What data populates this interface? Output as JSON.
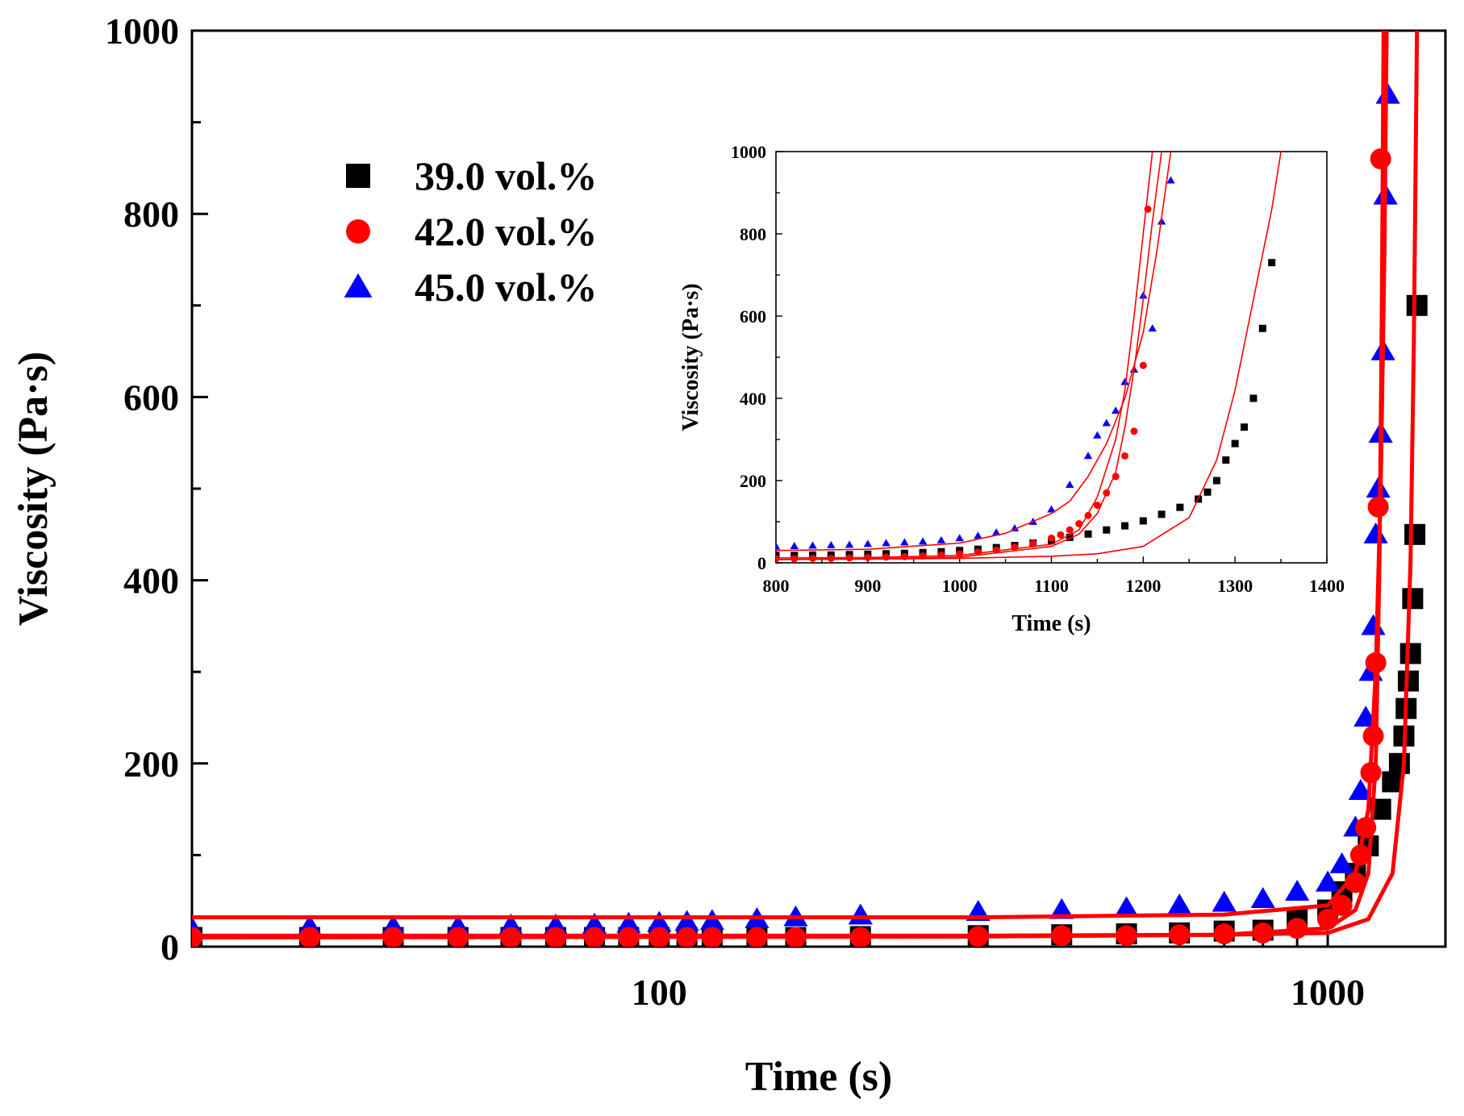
{
  "chart_data": [
    {
      "type": "scatter",
      "xlabel": "Time (s)",
      "ylabel": "Viscosity (Pa·s)",
      "xscale": "log",
      "xlim": [
        20,
        1500
      ],
      "ylim": [
        0,
        1000
      ],
      "xticks": [
        100,
        1000
      ],
      "xtick_labels": [
        "100",
        "1000"
      ],
      "yticks": [
        0,
        200,
        400,
        600,
        800,
        1000
      ],
      "ytick_labels": [
        "0",
        "200",
        "400",
        "600",
        "800",
        "1000"
      ],
      "grid": false,
      "legend_position": "top-left",
      "colors": {
        "series1": "#000000",
        "series2": "#ff0000",
        "series3": "#0000ff",
        "fit": "#ff0000"
      },
      "series": [
        {
          "name": "39.0 vol.%",
          "marker": "square",
          "x": [
            20,
            30,
            40,
            50,
            60,
            70,
            80,
            90,
            100,
            110,
            120,
            140,
            160,
            200,
            300,
            400,
            500,
            600,
            700,
            800,
            900,
            1000,
            1050,
            1100,
            1150,
            1200,
            1250,
            1280,
            1300,
            1310,
            1320,
            1330,
            1340,
            1350,
            1360
          ],
          "y": [
            10,
            10,
            10,
            10,
            10,
            10,
            10,
            10,
            10,
            10,
            10,
            10,
            10,
            11,
            12,
            13,
            14,
            15,
            17,
            18,
            30,
            40,
            60,
            80,
            110,
            150,
            180,
            200,
            230,
            260,
            290,
            320,
            380,
            450,
            700
          ]
        },
        {
          "name": "42.0 vol.%",
          "marker": "circle",
          "x": [
            20,
            30,
            40,
            50,
            60,
            70,
            80,
            90,
            100,
            110,
            120,
            140,
            160,
            200,
            300,
            400,
            500,
            600,
            700,
            800,
            900,
            1000,
            1050,
            1100,
            1120,
            1140,
            1160,
            1170,
            1180,
            1190,
            1200
          ],
          "y": [
            10,
            10,
            10,
            10,
            10,
            10,
            10,
            10,
            10,
            10,
            10,
            10,
            10,
            10,
            11,
            12,
            12,
            13,
            14,
            15,
            20,
            30,
            45,
            70,
            100,
            130,
            190,
            230,
            310,
            480,
            860
          ]
        },
        {
          "name": "45.0 vol.%",
          "marker": "triangle",
          "x": [
            20,
            30,
            40,
            50,
            60,
            70,
            80,
            90,
            100,
            110,
            120,
            140,
            160,
            200,
            300,
            400,
            500,
            600,
            700,
            800,
            900,
            1000,
            1050,
            1100,
            1120,
            1140,
            1160,
            1170,
            1180,
            1190,
            1200,
            1210,
            1220,
            1230
          ],
          "y": [
            20,
            22,
            22,
            22,
            23,
            23,
            24,
            25,
            26,
            27,
            28,
            30,
            32,
            34,
            38,
            40,
            42,
            45,
            48,
            52,
            60,
            70,
            90,
            130,
            170,
            250,
            300,
            350,
            450,
            500,
            560,
            650,
            820,
            930
          ]
        }
      ],
      "fits": [
        {
          "x": [
            20,
            300,
            700,
            1000,
            1150,
            1250,
            1300,
            1330,
            1345,
            1360
          ],
          "y": [
            12,
            12,
            13,
            15,
            30,
            80,
            200,
            420,
            650,
            1000
          ]
        },
        {
          "x": [
            20,
            300,
            700,
            1000,
            1100,
            1150,
            1180,
            1195,
            1205,
            1212
          ],
          "y": [
            10,
            11,
            13,
            20,
            40,
            80,
            200,
            420,
            700,
            1000
          ]
        },
        {
          "x": [
            20,
            300,
            700,
            1000,
            1100,
            1150,
            1180,
            1200,
            1215,
            1225
          ],
          "y": [
            32,
            32,
            35,
            45,
            80,
            150,
            300,
            500,
            750,
            1000
          ]
        }
      ]
    },
    {
      "type": "scatter",
      "inset": true,
      "xlabel": "Time (s)",
      "ylabel": "Viscosity (Pa·s)",
      "xscale": "linear",
      "xlim": [
        800,
        1400
      ],
      "ylim": [
        0,
        1000
      ],
      "xticks": [
        800,
        900,
        1000,
        1100,
        1200,
        1300,
        1400
      ],
      "xtick_labels": [
        "800",
        "900",
        "1000",
        "1100",
        "1200",
        "1300",
        "1400"
      ],
      "yticks": [
        0,
        200,
        400,
        600,
        800,
        1000
      ],
      "ytick_labels": [
        "0",
        "200",
        "400",
        "600",
        "800",
        "1000"
      ],
      "series": [
        {
          "name": "39.0 vol.%",
          "marker": "square",
          "x": [
            800,
            820,
            840,
            860,
            880,
            900,
            920,
            940,
            960,
            980,
            1000,
            1020,
            1040,
            1060,
            1080,
            1100,
            1120,
            1140,
            1160,
            1180,
            1200,
            1220,
            1240,
            1260,
            1270,
            1280,
            1290,
            1300,
            1310,
            1320,
            1330,
            1340
          ],
          "y": [
            18,
            18,
            19,
            19,
            20,
            21,
            22,
            23,
            25,
            27,
            30,
            33,
            37,
            42,
            48,
            54,
            62,
            70,
            80,
            90,
            102,
            118,
            135,
            155,
            172,
            200,
            250,
            290,
            330,
            400,
            570,
            730
          ]
        },
        {
          "name": "42.0 vol.%",
          "marker": "circle",
          "x": [
            800,
            820,
            840,
            860,
            880,
            900,
            920,
            940,
            960,
            980,
            1000,
            1020,
            1040,
            1060,
            1080,
            1100,
            1110,
            1120,
            1130,
            1140,
            1150,
            1160,
            1170,
            1180,
            1190,
            1200,
            1205
          ],
          "y": [
            10,
            10,
            11,
            11,
            12,
            13,
            14,
            15,
            17,
            19,
            22,
            26,
            31,
            38,
            47,
            60,
            68,
            80,
            95,
            115,
            140,
            170,
            210,
            260,
            320,
            480,
            860
          ]
        },
        {
          "name": "45.0 vol.%",
          "marker": "triangle",
          "x": [
            800,
            820,
            840,
            860,
            880,
            900,
            920,
            940,
            960,
            980,
            1000,
            1020,
            1040,
            1060,
            1080,
            1100,
            1120,
            1140,
            1150,
            1160,
            1170,
            1180,
            1190,
            1200,
            1210,
            1220,
            1230
          ],
          "y": [
            40,
            41,
            42,
            43,
            44,
            46,
            48,
            50,
            52,
            55,
            60,
            66,
            74,
            84,
            100,
            130,
            190,
            260,
            310,
            340,
            370,
            440,
            470,
            650,
            570,
            830,
            930
          ]
        }
      ],
      "fits": [
        {
          "x": [
            800,
            900,
            1000,
            1100,
            1150,
            1200,
            1250,
            1280,
            1300,
            1320,
            1340,
            1350
          ],
          "y": [
            8,
            9,
            11,
            16,
            22,
            40,
            110,
            250,
            420,
            640,
            860,
            1000
          ]
        },
        {
          "x": [
            800,
            900,
            1000,
            1100,
            1130,
            1150,
            1170,
            1180,
            1190,
            1200,
            1210,
            1220
          ],
          "y": [
            8,
            10,
            14,
            40,
            70,
            120,
            220,
            330,
            470,
            640,
            830,
            1000
          ]
        },
        {
          "x": [
            800,
            900,
            1000,
            1050,
            1100,
            1120,
            1140,
            1160,
            1180,
            1200,
            1215,
            1230
          ],
          "y": [
            30,
            33,
            48,
            72,
            120,
            150,
            210,
            290,
            400,
            560,
            760,
            1000
          ]
        },
        {
          "x": [
            800,
            900,
            1000,
            1100,
            1130,
            1150,
            1170,
            1180,
            1190,
            1200,
            1205,
            1210
          ],
          "y": [
            12,
            13,
            18,
            45,
            80,
            160,
            300,
            420,
            600,
            800,
            900,
            1000
          ]
        }
      ]
    }
  ]
}
